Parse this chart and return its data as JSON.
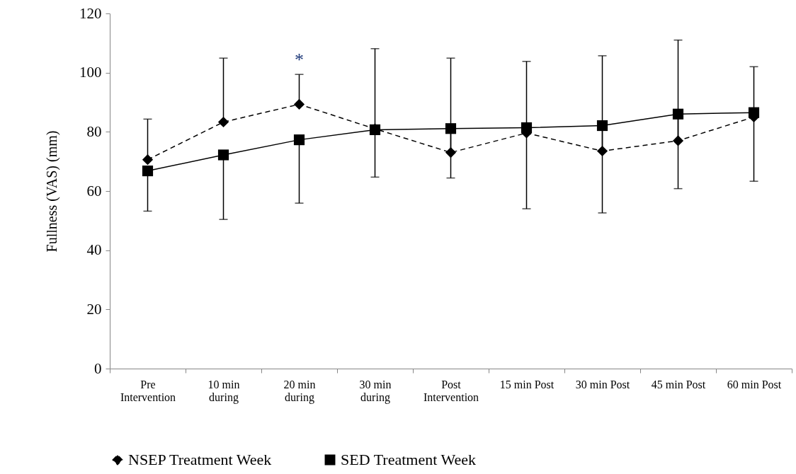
{
  "chart_data": {
    "type": "line",
    "ylabel": "Fullness (VAS) (mm)",
    "categories": [
      "Pre Intervention",
      "10 min during",
      "20 min during",
      "30 min during",
      "Post Intervention",
      "15 min Post",
      "30 min Post",
      "45 min Post",
      "60 min Post"
    ],
    "series": [
      {
        "name": "NSEP Treatment Week",
        "color": "#000000",
        "marker": "diamond",
        "line_style": "dashed",
        "values": [
          70.6,
          83.3,
          89.3,
          81,
          73,
          79.6,
          73.5,
          77,
          85
        ],
        "errors": [
          [
            70.6,
            84.3
          ],
          [
            83.3,
            104.9
          ],
          [
            89.3,
            99.4
          ],
          [
            81,
            108.1
          ],
          [
            73,
            104.9
          ],
          [
            79.6,
            103.8
          ],
          [
            73.5,
            105.7
          ],
          [
            77,
            111
          ],
          [
            85,
            102
          ]
        ]
      },
      {
        "name": "SED Treatment Week",
        "color": "#000000",
        "marker": "square",
        "line_style": "solid",
        "values": [
          66.8,
          72.2,
          77.3,
          80.7,
          81.1,
          81.4,
          82.1,
          86,
          86.5
        ],
        "errors": [
          [
            53.2,
            66.8
          ],
          [
            50.4,
            72.2
          ],
          [
            55.9,
            77.3
          ],
          [
            64.7,
            80.7
          ],
          [
            64.4,
            81.1
          ],
          [
            54,
            81.4
          ],
          [
            52.6,
            82.1
          ],
          [
            60.8,
            86
          ],
          [
            63.3,
            86.5
          ]
        ]
      }
    ],
    "ylim": [
      0,
      120
    ],
    "yticks": [
      0,
      20,
      40,
      60,
      80,
      100,
      120
    ],
    "grid": false,
    "legend": "bottom",
    "annotations": [
      "*"
    ]
  }
}
